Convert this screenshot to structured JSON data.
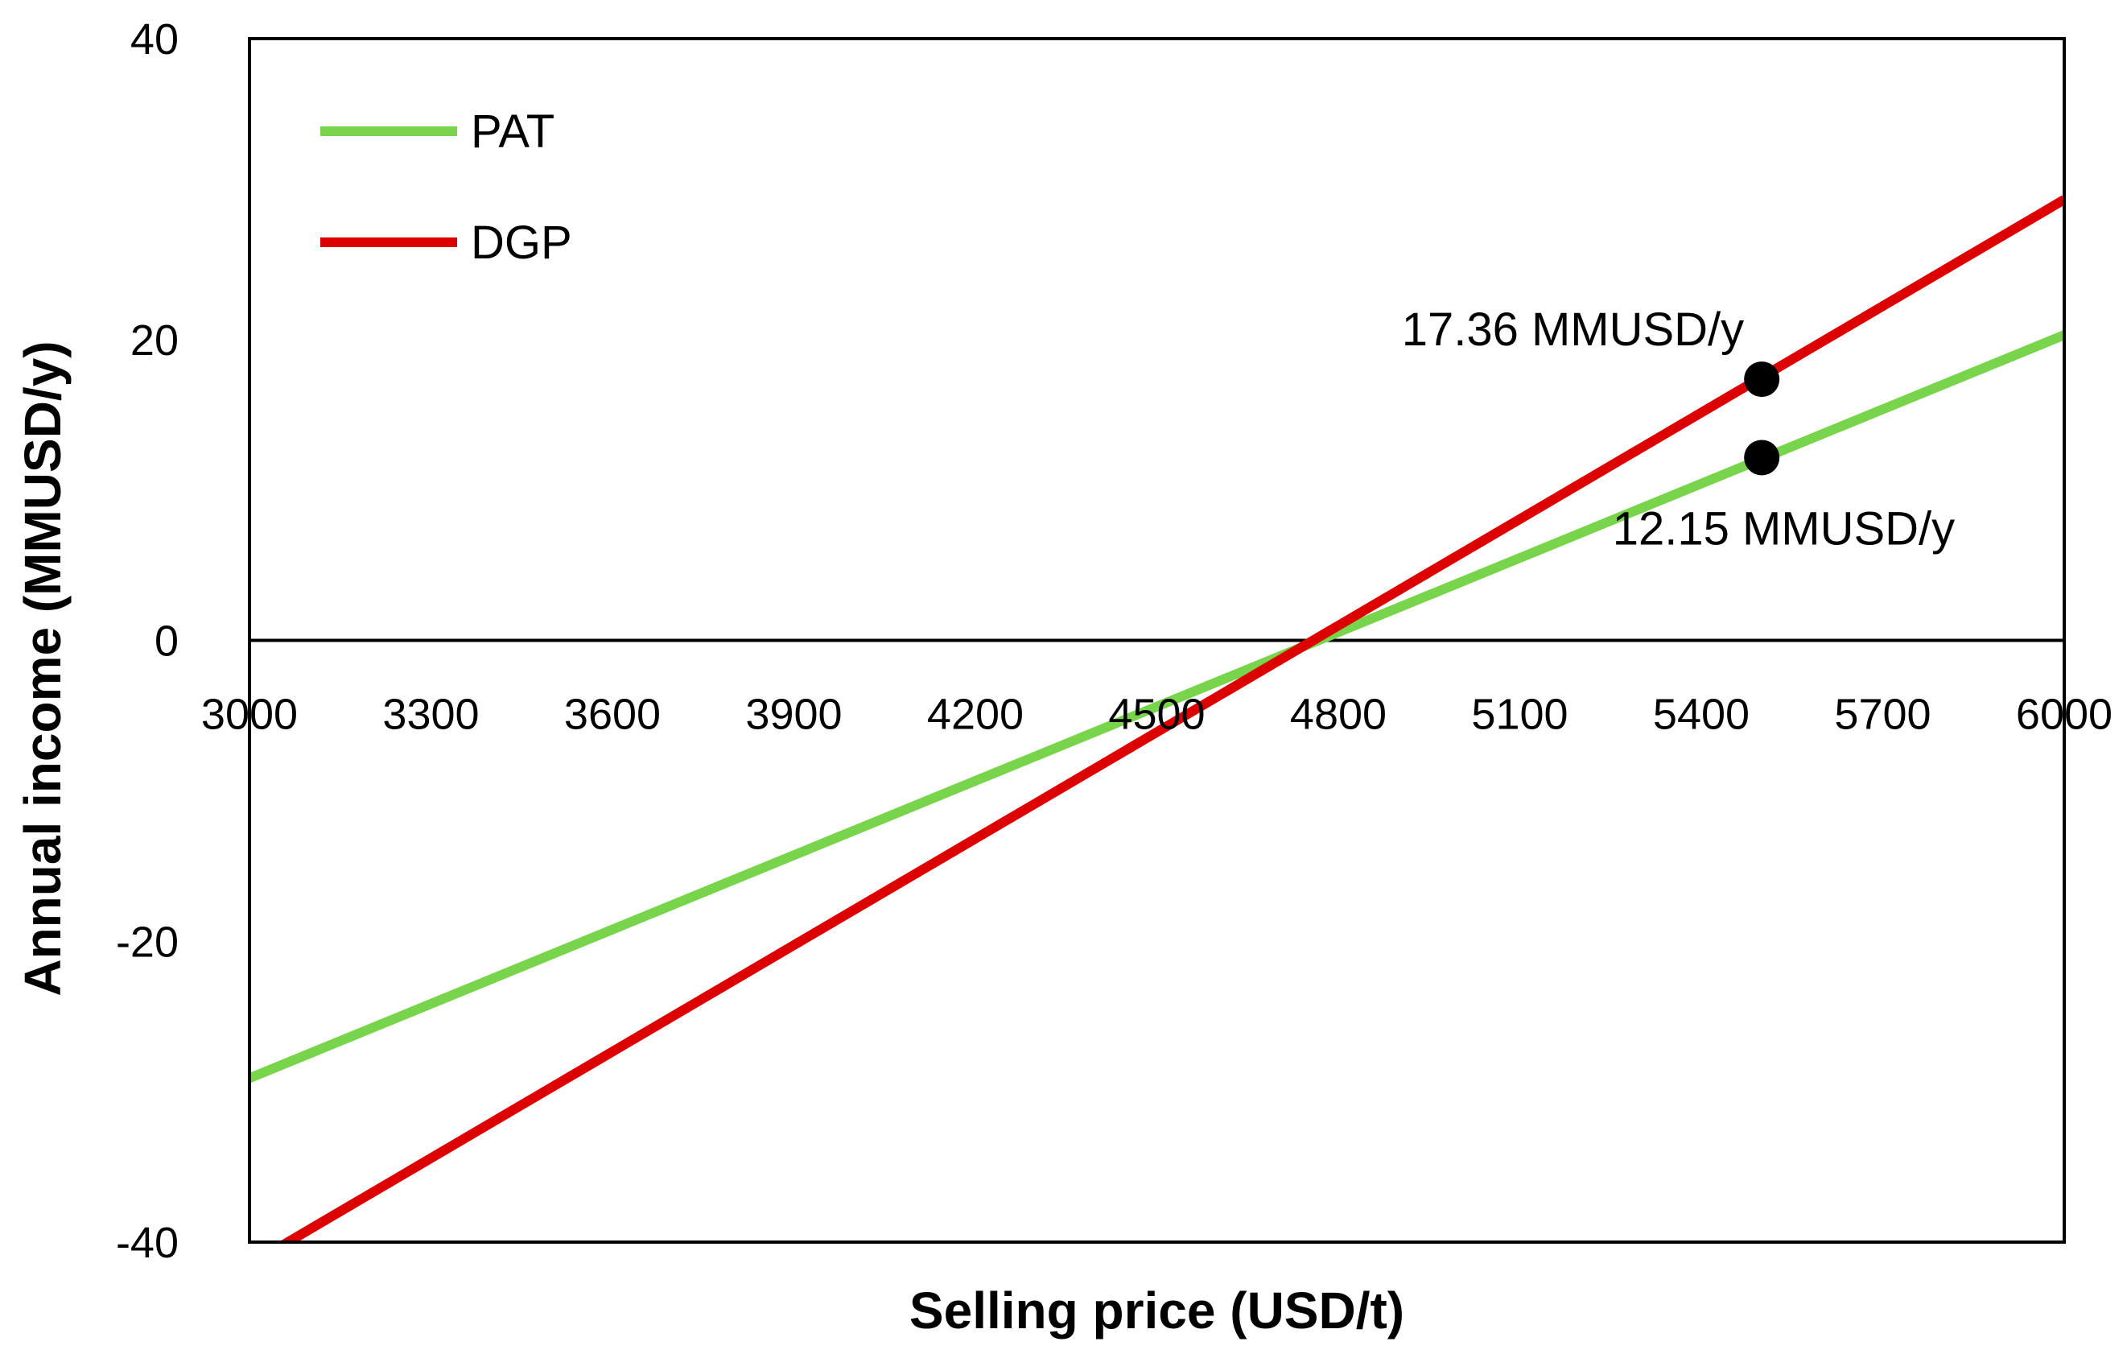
{
  "chart_data": {
    "type": "line",
    "xlabel": "Selling price (USD/t)",
    "ylabel": "Annual income (MMUSD/y)",
    "xlim": [
      3000,
      6000
    ],
    "ylim": [
      -40,
      40
    ],
    "xticks": [
      3000,
      3300,
      3600,
      3900,
      4200,
      4500,
      4800,
      5100,
      5400,
      5700,
      6000
    ],
    "yticks": [
      -40,
      -20,
      0,
      20,
      40
    ],
    "grid": false,
    "legend_position": "top-left",
    "series": [
      {
        "name": "PAT",
        "color": "#77d44b",
        "x": [
          3000,
          6000
        ],
        "y": [
          -29.1,
          20.3
        ]
      },
      {
        "name": "DGP",
        "color": "#dd0000",
        "x": [
          3000,
          6000
        ],
        "y": [
          -41.5,
          29.3
        ]
      }
    ],
    "annotations": [
      {
        "text": "17.36 MMUSD/y",
        "x": 5500,
        "y": 17.36
      },
      {
        "text": "12.15 MMUSD/y",
        "x": 5500,
        "y": 12.15
      }
    ]
  }
}
